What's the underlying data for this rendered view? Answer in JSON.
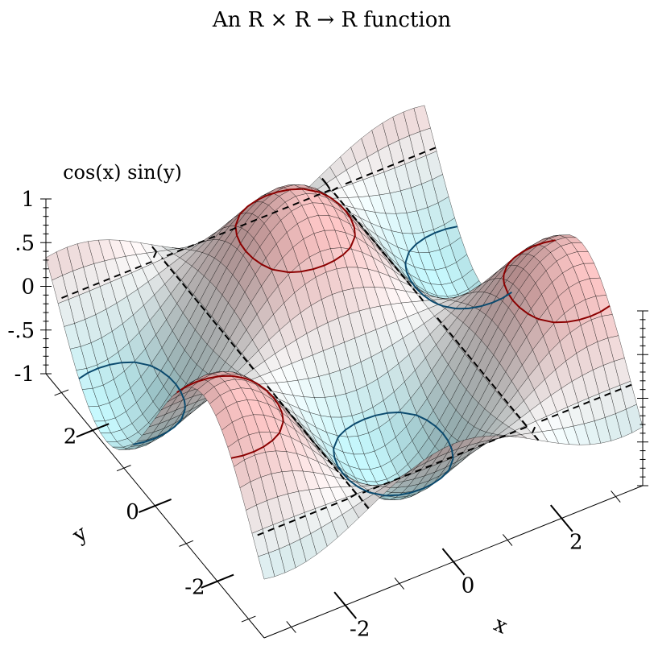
{
  "chart_data": {
    "type": "surface3d",
    "title": "An R × R → R function",
    "function_label": "cos(x) sin(y)",
    "xlabel": "x",
    "ylabel": "y",
    "zlabel": "",
    "xlim": [
      -3.5,
      3.5
    ],
    "ylim": [
      -3.5,
      3.5
    ],
    "zlim": [
      -1,
      1
    ],
    "x_tick_labels": [
      "-2",
      "0",
      "2"
    ],
    "y_tick_labels": [
      "-2",
      "0",
      "2"
    ],
    "z_tick_labels": [
      "1",
      ".5",
      "0",
      "-.5",
      "-1"
    ],
    "grid_samples": 36,
    "contour_levels": [
      {
        "level": 0.6,
        "color": "#8b0000"
      },
      {
        "level": 0.0,
        "color": "#000000",
        "dashed": true
      },
      {
        "level": -0.6,
        "color": "#0b4a6e"
      }
    ],
    "colors": {
      "high": "#ffc8c8",
      "mid": "#ffffff",
      "low": "#c8faff",
      "grid": "#000000"
    },
    "sample_values": [
      {
        "x": 0,
        "y": 1.57,
        "z": 1
      },
      {
        "x": 3.14,
        "y": -1.57,
        "z": 1
      },
      {
        "x": 0,
        "y": -1.57,
        "z": -1
      },
      {
        "x": 3.14,
        "y": 1.57,
        "z": -1
      },
      {
        "x": -3.14,
        "y": 1.57,
        "z": -1
      },
      {
        "x": 1.57,
        "y": 0,
        "z": 0
      }
    ]
  }
}
